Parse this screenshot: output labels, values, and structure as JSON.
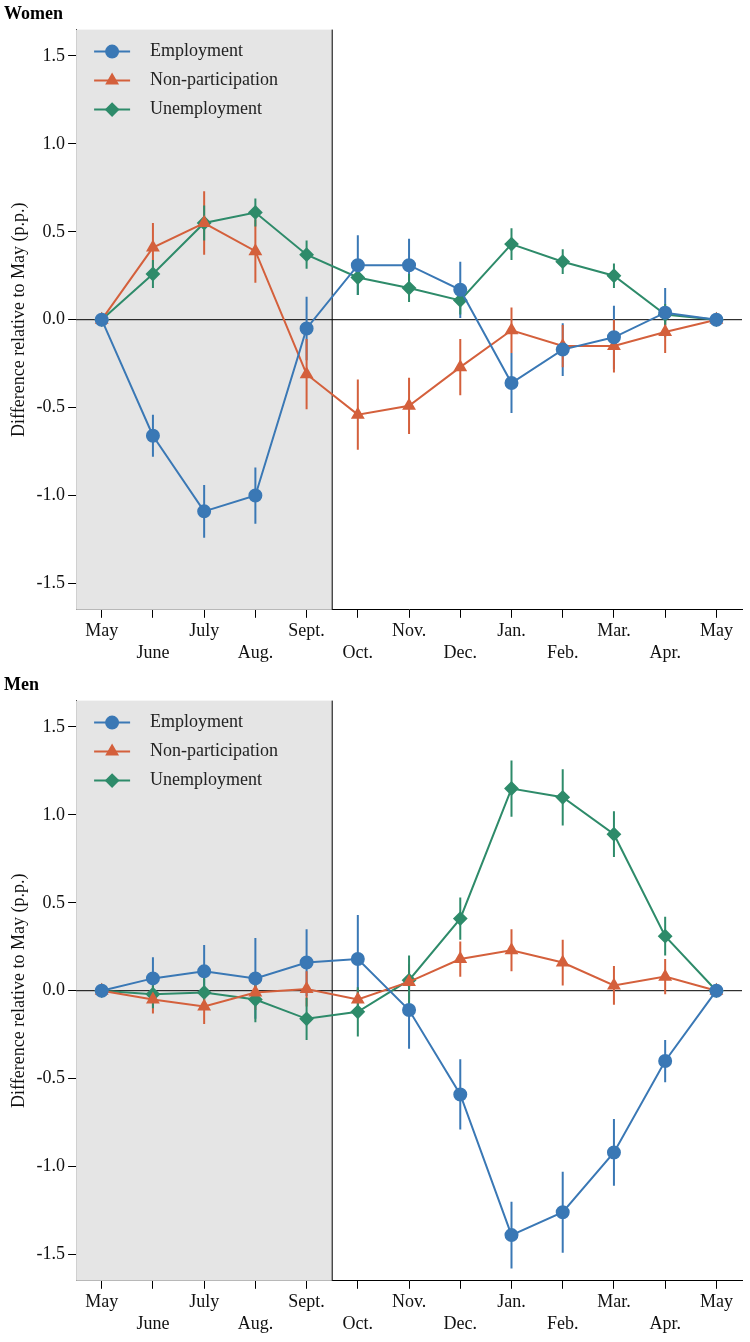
{
  "chart_data": [
    {
      "type": "line",
      "title": "Women",
      "y_label": "Difference relative to May (p.p.)",
      "categories": [
        "May",
        "June",
        "July",
        "Aug.",
        "Sept.",
        "Oct.",
        "Nov.",
        "Dec.",
        "Jan.",
        "Feb.",
        "Mar.",
        "Apr.",
        "May"
      ],
      "ylim": [
        -1.65,
        1.65
      ],
      "yticks": [
        {
          "value": -1.5,
          "label": "-1.5"
        },
        {
          "value": -1,
          "label": "-1.0"
        },
        {
          "value": -0.5,
          "label": "-0.5"
        },
        {
          "value": 0,
          "label": "0.0"
        },
        {
          "value": 0.5,
          "label": "0.5"
        },
        {
          "value": 1,
          "label": "1.0"
        },
        {
          "value": 1.5,
          "label": "1.5"
        }
      ],
      "grid": false,
      "legend": "upper left",
      "reference_line": 0,
      "shaded": {
        "from": "May",
        "to": "Sept."
      },
      "series": [
        {
          "name": "Employment",
          "color": "#3a78b5",
          "marker": "circle",
          "values": [
            0,
            -0.66,
            -1.09,
            -1.0,
            -0.05,
            0.31,
            0.31,
            0.17,
            -0.36,
            -0.17,
            -0.1,
            0.04,
            0
          ],
          "errors": [
            0,
            0.12,
            0.15,
            0.16,
            0.18,
            0.17,
            0.15,
            0.16,
            0.17,
            0.15,
            0.18,
            0.14,
            0
          ]
        },
        {
          "name": "Non-participation",
          "color": "#d4603c",
          "marker": "triangle",
          "values": [
            0,
            0.41,
            0.55,
            0.39,
            -0.31,
            -0.54,
            -0.49,
            -0.27,
            -0.06,
            -0.15,
            -0.15,
            -0.07,
            0
          ],
          "errors": [
            0,
            0.14,
            0.18,
            0.18,
            0.2,
            0.2,
            0.16,
            0.16,
            0.13,
            0.12,
            0.15,
            0.12,
            0
          ]
        },
        {
          "name": "Unemployment",
          "color": "#2e8b6a",
          "marker": "diamond",
          "values": [
            0,
            0.26,
            0.55,
            0.61,
            0.37,
            0.24,
            0.18,
            0.11,
            0.43,
            0.33,
            0.25,
            0.03,
            0
          ],
          "errors": [
            0,
            0.08,
            0.1,
            0.08,
            0.08,
            0.1,
            0.08,
            0.08,
            0.09,
            0.07,
            0.07,
            0.06,
            0
          ]
        }
      ]
    },
    {
      "type": "line",
      "title": "Men",
      "y_label": "Difference relative to May (p.p.)",
      "categories": [
        "May",
        "June",
        "July",
        "Aug.",
        "Sept.",
        "Oct.",
        "Nov.",
        "Dec.",
        "Jan.",
        "Feb.",
        "Mar.",
        "Apr.",
        "May"
      ],
      "ylim": [
        -1.65,
        1.65
      ],
      "yticks": [
        {
          "value": -1.5,
          "label": "-1.5"
        },
        {
          "value": -1,
          "label": "-1.0"
        },
        {
          "value": -0.5,
          "label": "-0.5"
        },
        {
          "value": 0,
          "label": "0.0"
        },
        {
          "value": 0.5,
          "label": "0.5"
        },
        {
          "value": 1,
          "label": "1.0"
        },
        {
          "value": 1.5,
          "label": "1.5"
        }
      ],
      "grid": false,
      "legend": "upper left",
      "reference_line": 0,
      "shaded": {
        "from": "May",
        "to": "Sept."
      },
      "series": [
        {
          "name": "Employment",
          "color": "#3a78b5",
          "marker": "circle",
          "values": [
            0,
            0.07,
            0.11,
            0.07,
            0.16,
            0.18,
            -0.11,
            -0.59,
            -1.39,
            -1.26,
            -0.92,
            -0.4,
            0
          ],
          "errors": [
            0,
            0.12,
            0.15,
            0.23,
            0.19,
            0.25,
            0.22,
            0.2,
            0.19,
            0.23,
            0.19,
            0.12,
            0
          ]
        },
        {
          "name": "Non-participation",
          "color": "#d4603c",
          "marker": "triangle",
          "values": [
            0,
            -0.05,
            -0.09,
            -0.01,
            0.01,
            -0.05,
            0.05,
            0.18,
            0.23,
            0.16,
            0.03,
            0.08,
            0
          ],
          "errors": [
            0,
            0.08,
            0.1,
            0.1,
            0.1,
            0.06,
            0.1,
            0.1,
            0.12,
            0.13,
            0.11,
            0.1,
            0
          ]
        },
        {
          "name": "Unemployment",
          "color": "#2e8b6a",
          "marker": "diamond",
          "values": [
            0,
            -0.02,
            -0.01,
            -0.05,
            -0.16,
            -0.12,
            0.06,
            0.41,
            1.15,
            1.1,
            0.89,
            0.31,
            0
          ],
          "errors": [
            0,
            0.08,
            0.1,
            0.13,
            0.12,
            0.14,
            0.14,
            0.12,
            0.16,
            0.16,
            0.13,
            0.11,
            0
          ]
        }
      ]
    }
  ]
}
